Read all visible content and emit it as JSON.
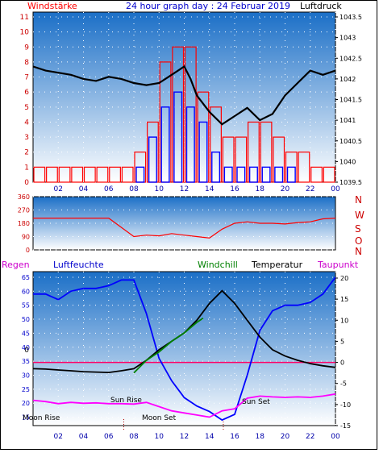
{
  "colors": {
    "sky_top": "#1b6fc7",
    "sky_bottom": "#ffffff",
    "wind_bars": "#ff0000",
    "gust_bars": "#0000ff",
    "pressure_line": "#000000",
    "wind_dir": "#ff0000",
    "humidity": "#0000ff",
    "dewpoint": "#ff00ff",
    "windchill": "#008000",
    "temperature": "#000000",
    "zero_line": "#ff0066",
    "event_marker": "#b00000"
  },
  "header": {
    "left_title": "Windstärke",
    "center_title": "24 hour graph day : 24 Februar 2019",
    "right_title": "Luftdruck"
  },
  "panel3_header": {
    "regen": "Regen",
    "luftfeuchte": "Luftfeuchte",
    "windchill": "Windchill",
    "temperatur": "Temperatur",
    "taupunkt": "Taupunkt"
  },
  "compass_labels": [
    "N",
    "W",
    "S",
    "O",
    "N"
  ],
  "events": {
    "moon_rise": "Moon Rise",
    "sun_rise": "Sun Rise",
    "moon_set": "Moon Set",
    "sun_set": "Sun Set"
  },
  "chart_data": [
    {
      "type": "bar",
      "panel": "wind",
      "title": "24 hour graph day : 24 Februar 2019",
      "x_ticks": [
        "02",
        "04",
        "06",
        "08",
        "10",
        "12",
        "14",
        "16",
        "18",
        "20",
        "22",
        "00"
      ],
      "y_left_label": "Windstärke",
      "y_left_ticks": [
        0,
        1,
        2,
        3,
        4,
        5,
        6,
        7,
        8,
        9,
        10,
        11
      ],
      "y_left_range": [
        0,
        11
      ],
      "y_right_label": "Luftdruck",
      "y_right_ticks": [
        1039.5,
        1040,
        1040.5,
        1041,
        1041.5,
        1042,
        1042.5,
        1043,
        1043.5
      ],
      "y_right_range": [
        1039.5,
        1043.5
      ],
      "wind_hourly": [
        1,
        1,
        1,
        1,
        1,
        1,
        1,
        1,
        2,
        4,
        8,
        9,
        9,
        6,
        5,
        3,
        3,
        4,
        4,
        3,
        2,
        2,
        1,
        1
      ],
      "gust_hourly": [
        0,
        0,
        0,
        0,
        0,
        0,
        0,
        0,
        1,
        3,
        5,
        6,
        5,
        4,
        2,
        1,
        1,
        1,
        1,
        1,
        1,
        0,
        0,
        0
      ],
      "pressure": {
        "x": [
          0,
          1,
          2,
          3,
          4,
          5,
          6,
          7,
          8,
          9,
          10,
          11,
          12,
          12.5,
          13,
          14,
          15,
          16,
          17,
          18,
          19,
          20,
          21,
          22,
          23,
          24
        ],
        "y": [
          1042.3,
          1042.2,
          1042.15,
          1042.1,
          1042.0,
          1041.95,
          1042.05,
          1042.0,
          1041.9,
          1041.85,
          1041.9,
          1042.1,
          1042.3,
          1042.0,
          1041.6,
          1041.2,
          1040.9,
          1041.1,
          1041.3,
          1041.0,
          1041.15,
          1041.6,
          1041.9,
          1042.2,
          1042.1,
          1042.2
        ]
      }
    },
    {
      "type": "line",
      "panel": "wind_direction",
      "x_ticks": [],
      "y_ticks": [
        0,
        90,
        180,
        270,
        360
      ],
      "y_range": [
        0,
        360
      ],
      "direction": {
        "x": [
          0,
          2,
          4,
          6,
          8,
          9,
          10,
          11,
          12,
          13,
          14,
          15,
          16,
          17,
          18,
          19,
          20,
          21,
          22,
          23,
          24
        ],
        "y": [
          215,
          215,
          215,
          215,
          90,
          100,
          95,
          110,
          100,
          90,
          80,
          140,
          180,
          190,
          180,
          180,
          175,
          185,
          190,
          210,
          215
        ]
      }
    },
    {
      "type": "line",
      "panel": "temperature_humidity",
      "x_ticks": [
        "02",
        "04",
        "06",
        "08",
        "10",
        "12",
        "14",
        "16",
        "18",
        "20",
        "22",
        "00"
      ],
      "y_left_label": "Luftfeuchte",
      "y_left_ticks": [
        15,
        20,
        25,
        30,
        35,
        40,
        45,
        50,
        55,
        60,
        65
      ],
      "y_left_range": [
        12,
        67
      ],
      "y_right_label": "Temperatur",
      "y_right_ticks": [
        -15,
        -10,
        -5,
        0,
        5,
        10,
        15,
        20
      ],
      "y_right_range": [
        -15,
        20
      ],
      "regen_marker": "0",
      "series": [
        {
          "name": "Luftfeuchte",
          "x": [
            0,
            1,
            2,
            3,
            4,
            5,
            6,
            7,
            8,
            9,
            10,
            11,
            12,
            13,
            14,
            15,
            16,
            17,
            18,
            19,
            20,
            21,
            22,
            23,
            24
          ],
          "y": [
            59,
            59,
            57,
            60,
            61,
            61,
            62,
            64,
            64,
            52,
            36,
            28,
            22,
            19,
            17,
            14,
            16,
            30,
            46,
            53,
            55,
            55,
            56,
            59,
            65
          ]
        },
        {
          "name": "Temperatur",
          "x": [
            0,
            1,
            2,
            3,
            4,
            5,
            6,
            7,
            8,
            9,
            10,
            11,
            12,
            13,
            14,
            15,
            16,
            17,
            18,
            19,
            20,
            21,
            22,
            23,
            24
          ],
          "y": [
            -1.5,
            -1.6,
            -1.8,
            -2.0,
            -2.2,
            -2.3,
            -2.4,
            -2.0,
            -1.5,
            0.5,
            3.0,
            5.0,
            7.0,
            10.0,
            14.0,
            17.0,
            14.0,
            10.0,
            6.0,
            3.0,
            1.5,
            0.5,
            -0.3,
            -0.8,
            -1.2
          ]
        },
        {
          "name": "Windchill",
          "x": [
            8,
            8.5,
            9,
            10,
            11,
            12,
            13,
            13.5
          ],
          "y": [
            -2.5,
            -1.0,
            0.5,
            2.5,
            5.0,
            7.0,
            9.5,
            10.5
          ]
        },
        {
          "name": "Taupunkt",
          "x": [
            0,
            1,
            2,
            3,
            4,
            5,
            6,
            7,
            8,
            9,
            10,
            11,
            12,
            13,
            14,
            15,
            16,
            17,
            18,
            19,
            20,
            21,
            22,
            23,
            24
          ],
          "y": [
            -9,
            -9.3,
            -9.8,
            -9.5,
            -9.7,
            -9.6,
            -9.8,
            -9.8,
            -9.9,
            -9.5,
            -10.5,
            -11.5,
            -12.0,
            -12.5,
            -13.0,
            -11.5,
            -11.0,
            -8.5,
            -8.0,
            -8.2,
            -8.3,
            -8.2,
            -8.3,
            -8.0,
            -7.5
          ]
        }
      ]
    }
  ]
}
